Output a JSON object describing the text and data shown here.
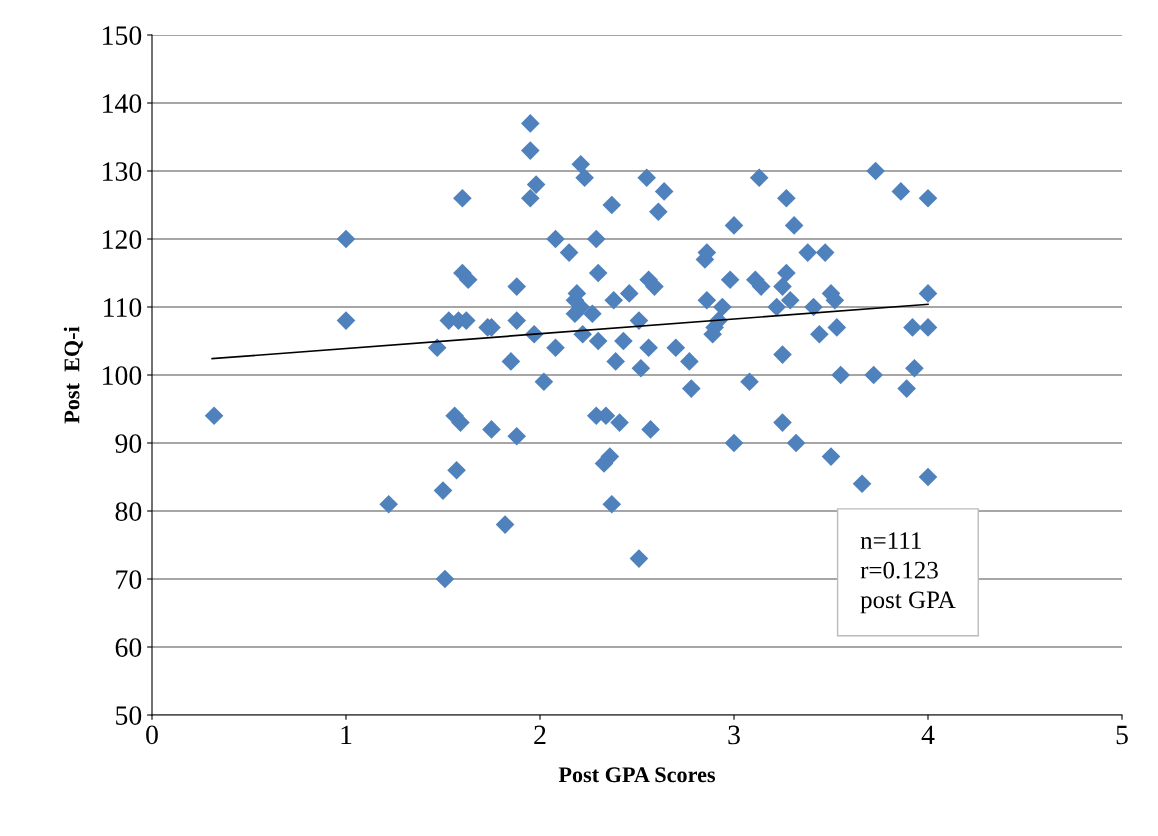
{
  "chart_data": {
    "type": "scatter",
    "xlabel": "Post GPA Scores",
    "ylabel": "Post  EQ-i",
    "xlim": [
      0,
      5
    ],
    "xticks": [
      0,
      1,
      2,
      3,
      4,
      5
    ],
    "ylim": [
      50,
      150
    ],
    "yticks": [
      50,
      60,
      70,
      80,
      90,
      100,
      110,
      120,
      130,
      140,
      150
    ],
    "grid": "y",
    "annotations": [
      "n=111\nr=0.123\npost GPA"
    ],
    "series": [
      {
        "marker": "diamond",
        "color": "#4f81bd",
        "x": [
          0.32,
          1.0,
          1.0,
          1.22,
          1.47,
          1.5,
          1.51,
          1.53,
          1.56,
          1.57,
          1.58,
          1.59,
          1.6,
          1.6,
          1.62,
          1.63,
          1.73,
          1.75,
          1.75,
          1.82,
          1.85,
          1.88,
          1.88,
          1.88,
          1.95,
          1.95,
          1.95,
          1.97,
          1.98,
          2.02,
          2.08,
          2.08,
          2.15,
          2.18,
          2.18,
          2.19,
          2.21,
          2.22,
          2.21,
          2.23,
          2.3,
          2.27,
          2.29,
          2.3,
          2.29,
          2.34,
          2.33,
          2.36,
          2.37,
          2.37,
          2.38,
          2.39,
          2.41,
          2.43,
          2.46,
          2.51,
          2.52,
          2.51,
          2.55,
          2.56,
          2.56,
          2.57,
          2.59,
          2.61,
          2.64,
          2.7,
          2.77,
          2.78,
          2.85,
          2.86,
          2.86,
          2.89,
          2.9,
          2.92,
          2.94,
          2.98,
          3.0,
          3.0,
          3.08,
          3.11,
          3.13,
          3.14,
          3.22,
          3.25,
          3.25,
          3.25,
          3.27,
          3.27,
          3.29,
          3.31,
          3.32,
          3.38,
          3.41,
          3.44,
          3.47,
          3.5,
          3.52,
          3.53,
          3.5,
          3.55,
          3.66,
          3.72,
          3.73,
          3.86,
          3.89,
          3.92,
          3.93,
          4.0,
          4.0,
          4.0,
          4.0
        ],
        "values": [
          94,
          120,
          108,
          81,
          104,
          83,
          70,
          108,
          94,
          86,
          108,
          93,
          126,
          115,
          108,
          114,
          107,
          107,
          92,
          78,
          102,
          113,
          108,
          91,
          137,
          133,
          126,
          106,
          128,
          99,
          120,
          104,
          118,
          111,
          109,
          112,
          110,
          106,
          131,
          129,
          105,
          109,
          120,
          115,
          94,
          94,
          87,
          88,
          81,
          125,
          111,
          102,
          93,
          105,
          112,
          108,
          101,
          73,
          129,
          114,
          104,
          92,
          113,
          124,
          127,
          104,
          102,
          98,
          117,
          118,
          111,
          106,
          107,
          108,
          110,
          114,
          122,
          90,
          99,
          114,
          129,
          113,
          110,
          103,
          93,
          113,
          126,
          115,
          111,
          122,
          90,
          118,
          110,
          106,
          118,
          112,
          111,
          107,
          88,
          100,
          84,
          100,
          130,
          127,
          98,
          107,
          101,
          126,
          112,
          107,
          85
        ]
      },
      {
        "type": "line",
        "color": "#000000",
        "x": [
          0.31,
          4.0
        ],
        "values": [
          102.4,
          110.4
        ]
      }
    ]
  }
}
